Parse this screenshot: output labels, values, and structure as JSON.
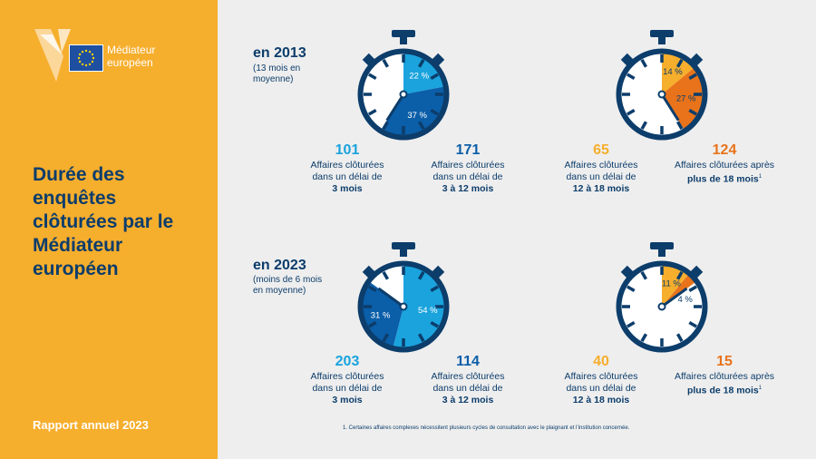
{
  "sidebar": {
    "logo_line1": "Médiateur",
    "logo_line2": "européen",
    "title": "Durée des enquêtes clôturées par le Médiateur européen",
    "footer": "Rapport annuel 2023"
  },
  "colors": {
    "sidebar_bg": "#f6ae2d",
    "dark_blue": "#0c3d6b",
    "mid_blue": "#0b5ea8",
    "light_blue": "#1aa3dd",
    "yellow": "#f6ae2d",
    "orange": "#e8731a"
  },
  "chart_data": [
    {
      "type": "pie",
      "title": "en 2013",
      "subtitle": "(13 mois en moyenne)",
      "categories": [
        "Affaires clôturées dans un délai de 3 mois",
        "Affaires clôturées dans un délai de 3 à 12 mois",
        "Affaires clôturées dans un délai de 12 à 18 mois",
        "Affaires clôturées après plus de 18 mois"
      ],
      "values": [
        101,
        171,
        65,
        124
      ],
      "percent_labels": [
        "22 %",
        "37 %",
        "14 %",
        "27 %"
      ],
      "percents": [
        22,
        37,
        14,
        27
      ]
    },
    {
      "type": "pie",
      "title": "en 2023",
      "subtitle": "(moins de 6 mois en moyenne)",
      "categories": [
        "Affaires clôturées dans un délai de 3 mois",
        "Affaires clôturées dans un délai de 3 à 12 mois",
        "Affaires clôturées dans un délai de 12 à 18 mois",
        "Affaires clôturées après plus de 18 mois"
      ],
      "values": [
        203,
        114,
        40,
        15
      ],
      "percent_labels": [
        "54 %",
        "31 %",
        "11 %",
        "4 %"
      ],
      "percents": [
        54,
        31,
        11,
        4
      ]
    }
  ],
  "labels": {
    "line1": "Affaires clôturées",
    "line1_after": "Affaires clôturées après",
    "line2": "dans un délai de",
    "g1": "3 mois",
    "g2": "3 à 12 mois",
    "g3": "12 à 18 mois",
    "g4": "plus de 18 mois",
    "footnote_mark": "1"
  },
  "footnote": "1. Certaines affaires complexes nécessitent plusieurs cycles de consultation avec le plaignant et l’institution concernée."
}
